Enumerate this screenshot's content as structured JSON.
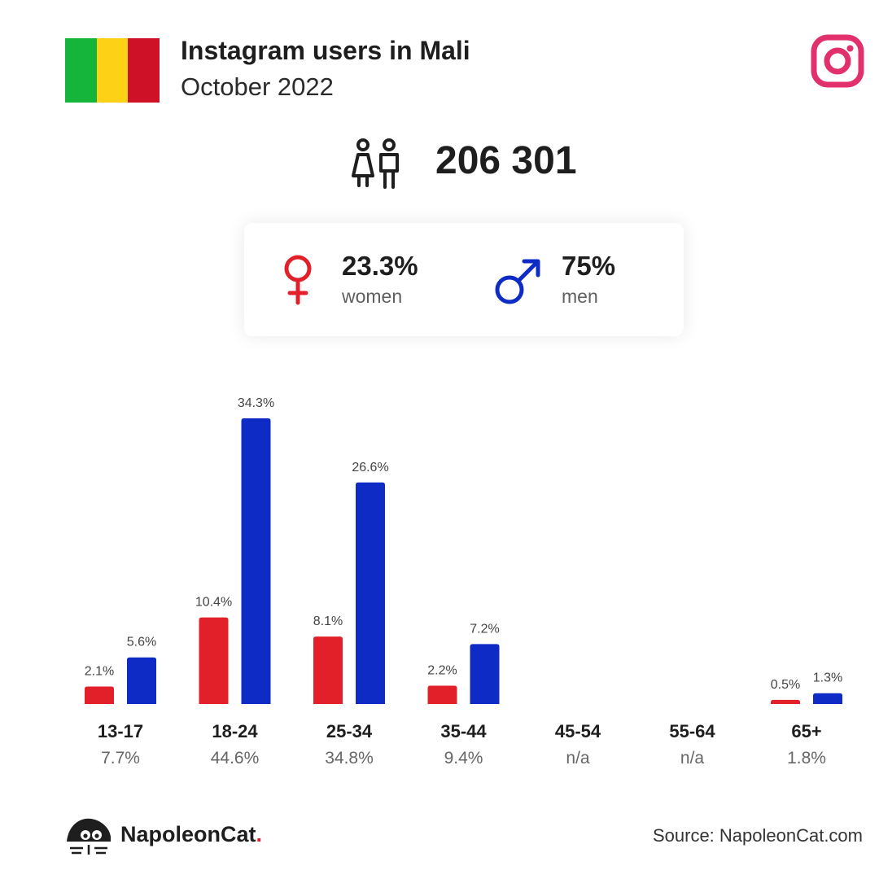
{
  "header": {
    "title": "Instagram users in Mali",
    "subtitle": "October 2022",
    "flag_colors": [
      "#14b53a",
      "#fcd116",
      "#ce1126"
    ],
    "platform_icon": "instagram-icon"
  },
  "summary": {
    "total_users": "206 301",
    "users_icon": "users-icon"
  },
  "gender": {
    "female": {
      "pct": "23.3%",
      "label": "women",
      "icon": "female-icon",
      "color": "#e2202a"
    },
    "male": {
      "pct": "75%",
      "label": "men",
      "icon": "male-icon",
      "color": "#0f2bc6"
    }
  },
  "chart_data": {
    "type": "bar",
    "categories": [
      "13-17",
      "18-24",
      "25-34",
      "35-44",
      "45-54",
      "55-64",
      "65+"
    ],
    "category_totals": [
      "7.7%",
      "44.6%",
      "34.8%",
      "9.4%",
      "n/a",
      "n/a",
      "1.8%"
    ],
    "series": [
      {
        "color": "#e2202a",
        "values": [
          2.1,
          10.4,
          8.1,
          2.2,
          null,
          null,
          0.5
        ]
      },
      {
        "color": "#0f2bc6",
        "values": [
          5.6,
          34.3,
          26.6,
          7.2,
          null,
          null,
          1.3
        ]
      }
    ],
    "value_labels": [
      [
        "2.1%",
        "10.4%",
        "8.1%",
        "2.2%",
        "",
        "",
        "0.5%"
      ],
      [
        "5.6%",
        "34.3%",
        "26.6%",
        "7.2%",
        "",
        "",
        "1.3%"
      ]
    ],
    "ylim": [
      0,
      34.3
    ],
    "grid": false
  },
  "footer": {
    "brand": "NapoleonCat",
    "brand_dot": ".",
    "source": "Source: NapoleonCat.com"
  }
}
